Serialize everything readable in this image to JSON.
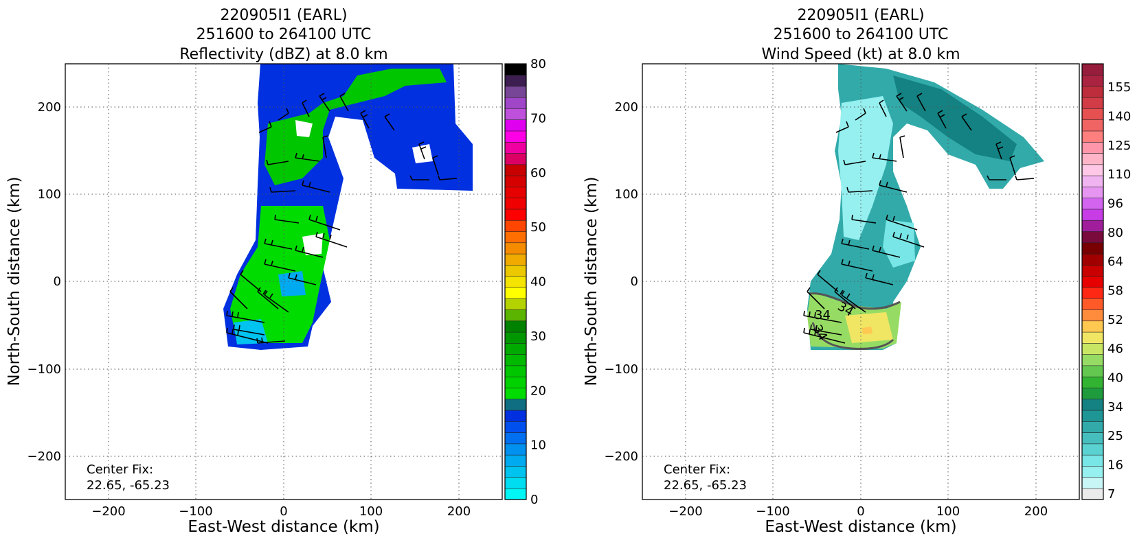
{
  "panels": [
    {
      "title_lines": [
        "220905I1 (EARL)",
        "251600 to 264100 UTC",
        "Reflectivity (dBZ) at 8.0 km"
      ],
      "xlabel": "East-West distance (km)",
      "ylabel": "North-South distance (km)",
      "center_fix_label": "Center Fix:",
      "center_fix_value": "22.65, -65.23",
      "colorbar": {
        "tick_labels": [
          "0",
          "10",
          "20",
          "30",
          "40",
          "50",
          "60",
          "70",
          "80"
        ],
        "colors": [
          "#00f5f5",
          "#00dcf0",
          "#00c3f0",
          "#00aaf0",
          "#0090f0",
          "#0070f0",
          "#0050f0",
          "#0030e0",
          "#0f6e82",
          "#00dc00",
          "#00d200",
          "#00c600",
          "#00b900",
          "#00aa00",
          "#009600",
          "#008200",
          "#5ab400",
          "#b4d200",
          "#ffff00",
          "#f5e400",
          "#ebc800",
          "#f0aa00",
          "#f58c00",
          "#ff6e00",
          "#ff4600",
          "#ff0000",
          "#f00000",
          "#e60000",
          "#d60000",
          "#c80000",
          "#dc0064",
          "#f000a0",
          "#ff00e6",
          "#e000f0",
          "#be50dc",
          "#a046c8",
          "#784696",
          "#3c1e50",
          "#000000"
        ]
      }
    },
    {
      "title_lines": [
        "220905I1 (EARL)",
        "251600 to 264100 UTC",
        "Wind Speed (kt) at 8.0 km"
      ],
      "xlabel": "East-West distance (km)",
      "ylabel": "North-South distance (km)",
      "center_fix_label": "Center Fix:",
      "center_fix_value": "22.65, -65.23",
      "contour_labels": [
        "34",
        "34",
        "34"
      ],
      "colorbar": {
        "tick_labels": [
          "7",
          "16",
          "25",
          "34",
          "40",
          "46",
          "52",
          "58",
          "64",
          "80",
          "96",
          "110",
          "125",
          "140",
          "155"
        ],
        "colors": [
          "#ebebeb",
          "#c8f5f5",
          "#96f0f0",
          "#78e6e6",
          "#5ad2d2",
          "#46bebe",
          "#32aaaa",
          "#1e9696",
          "#148282",
          "#1e9b3c",
          "#32b432",
          "#64c850",
          "#96dc64",
          "#c8e664",
          "#f0e664",
          "#ffc850",
          "#ff8c3c",
          "#ff5a28",
          "#ff2814",
          "#e60000",
          "#c80000",
          "#a00000",
          "#780000",
          "#780a3c",
          "#a01e9b",
          "#c83ce6",
          "#d264f0",
          "#e696f0",
          "#f0b4f0",
          "#ffc8e6",
          "#ffb4c8",
          "#ff96aa",
          "#ff7f7f",
          "#f06464",
          "#e65050",
          "#d23c46",
          "#be2d3c",
          "#aa2341",
          "#961e3c"
        ]
      }
    }
  ],
  "chart_data": [
    {
      "type": "heatmap",
      "title": "220905I1 (EARL)\n251600 to 264100 UTC\nReflectivity (dBZ) at 8.0 km",
      "xlabel": "East-West distance (km)",
      "ylabel": "North-South distance (km)",
      "xlim": [
        -250,
        250
      ],
      "ylim": [
        -250,
        250
      ],
      "xticks": [
        -200,
        -100,
        0,
        100,
        200
      ],
      "yticks": [
        -200,
        -100,
        0,
        100,
        200
      ],
      "grid": true,
      "colorbar_label_values": [
        0,
        10,
        20,
        30,
        40,
        50,
        60,
        70,
        80
      ],
      "colorbar_range": [
        0,
        80
      ],
      "annotation": "Center Fix: 22.65, -65.23"
    },
    {
      "type": "heatmap",
      "title": "220905I1 (EARL)\n251600 to 264100 UTC\nWind Speed (kt) at 8.0 km",
      "xlabel": "East-West distance (km)",
      "ylabel": "North-South distance (km)",
      "xlim": [
        -250,
        250
      ],
      "ylim": [
        -250,
        250
      ],
      "xticks": [
        -200,
        -100,
        0,
        100,
        200
      ],
      "yticks": [
        -200,
        -100,
        0,
        100,
        200
      ],
      "grid": true,
      "colorbar_label_values": [
        7,
        16,
        25,
        34,
        40,
        46,
        52,
        58,
        64,
        80,
        96,
        110,
        125,
        140,
        155
      ],
      "colorbar_range": [
        7,
        155
      ],
      "contour_level": 34,
      "annotation": "Center Fix: 22.65, -65.23"
    }
  ]
}
